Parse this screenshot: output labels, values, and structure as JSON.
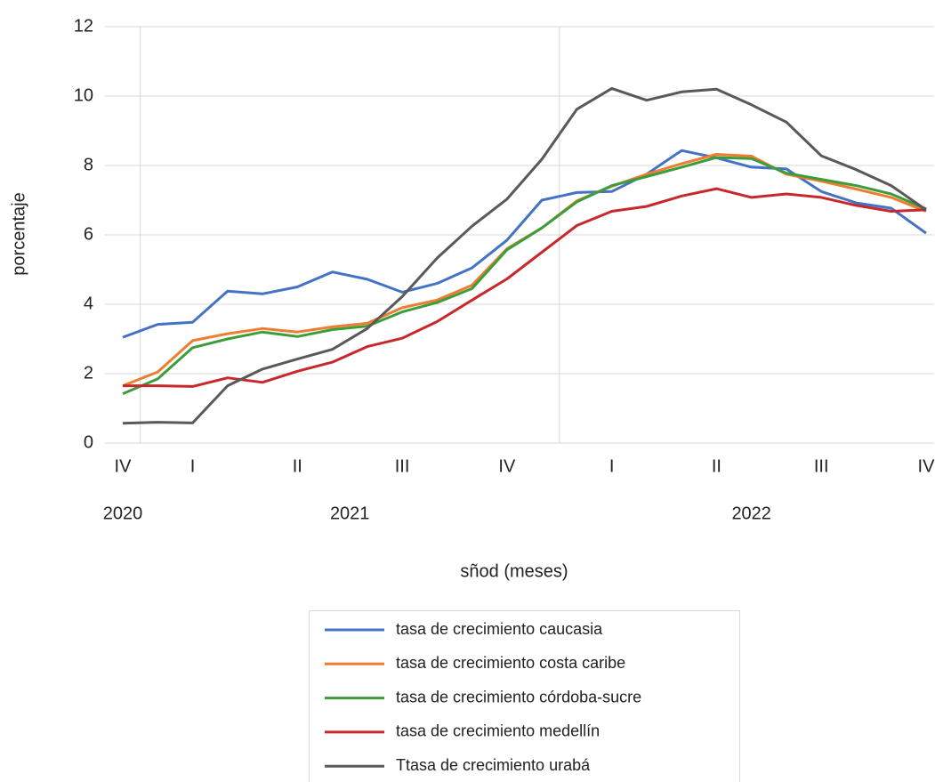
{
  "chart_data": {
    "type": "line",
    "y_label": "porcentaje",
    "x_label": "sñod (meses)",
    "categories": [
      "IV",
      null,
      "I",
      null,
      null,
      "II",
      null,
      null,
      "III",
      null,
      null,
      "IV",
      null,
      null,
      "I",
      null,
      null,
      "II",
      null,
      null,
      "III",
      null,
      null,
      "IV"
    ],
    "category_groups": [
      "2020",
      "2021",
      null,
      null,
      null,
      null,
      null,
      null,
      null,
      null,
      null,
      null,
      null,
      "2022",
      null,
      null,
      null,
      null,
      null,
      null,
      null,
      null,
      null,
      null
    ],
    "ylim": [
      0,
      12
    ],
    "yticks": [
      0,
      2,
      4,
      6,
      8,
      10,
      12
    ],
    "grid": true,
    "legend": "bottom",
    "series": [
      {
        "name": "tasa de crecimiento caucasia",
        "color": "#4472c4",
        "values": [
          3.05,
          3.42,
          3.48,
          4.38,
          4.3,
          4.5,
          4.93,
          4.72,
          4.35,
          4.6,
          5.05,
          5.85,
          7.0,
          7.22,
          7.25,
          7.75,
          8.43,
          8.22,
          7.95,
          7.9,
          7.25,
          6.92,
          6.77,
          6.05
        ]
      },
      {
        "name": "tasa de crecimiento costa caribe",
        "color": "#ed7d31",
        "values": [
          1.65,
          2.05,
          2.95,
          3.15,
          3.3,
          3.2,
          3.35,
          3.45,
          3.9,
          4.12,
          4.55,
          5.6,
          6.2,
          6.98,
          7.4,
          7.75,
          8.05,
          8.32,
          8.27,
          7.75,
          7.55,
          7.32,
          7.08,
          6.68
        ]
      },
      {
        "name": "tasa de crecimiento córdoba-sucre",
        "color": "#3c9d3a",
        "values": [
          1.42,
          1.85,
          2.75,
          3.0,
          3.2,
          3.07,
          3.27,
          3.37,
          3.78,
          4.05,
          4.45,
          5.57,
          6.2,
          6.95,
          7.42,
          7.68,
          7.95,
          8.23,
          8.2,
          7.78,
          7.6,
          7.42,
          7.18,
          6.75
        ]
      },
      {
        "name": "tasa de crecimiento medellín",
        "color": "#c8282b",
        "values": [
          1.65,
          1.65,
          1.63,
          1.88,
          1.75,
          2.07,
          2.33,
          2.78,
          3.02,
          3.5,
          4.12,
          4.73,
          5.5,
          6.27,
          6.68,
          6.82,
          7.12,
          7.33,
          7.08,
          7.18,
          7.08,
          6.85,
          6.68,
          6.72
        ]
      },
      {
        "name": "Ttasa de crecimiento urabá",
        "color": "#595959",
        "values": [
          0.57,
          0.6,
          0.58,
          1.65,
          2.13,
          2.42,
          2.7,
          3.3,
          4.22,
          5.33,
          6.25,
          7.03,
          8.18,
          9.62,
          10.22,
          9.88,
          10.12,
          10.2,
          9.75,
          9.25,
          8.28,
          7.88,
          7.42,
          6.72
        ]
      }
    ]
  }
}
